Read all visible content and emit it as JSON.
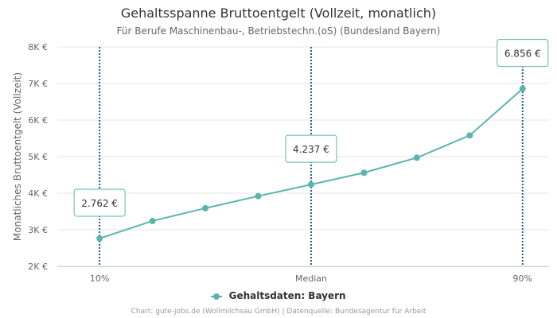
{
  "title": "Gehaltsspanne Bruttoentgelt (Vollzeit, monatlich)",
  "subtitle": "Für Berufe Maschinenbau-, Betriebstechn.(oS) (Bundesland Bayern)",
  "credits": "Chart: gute-jobs.de (Wollmilchsau GmbH) | Datenquelle: Bundesagentur für Arbeit",
  "colors": {
    "series": "#5bb5ae",
    "marker_line": "#1f5f8b",
    "grid": "#e6e6e6",
    "label_border": "#5bb5ae"
  },
  "chart_data": {
    "type": "line",
    "title": "Gehaltsspanne Bruttoentgelt (Vollzeit, monatlich)",
    "subtitle": "Für Berufe Maschinenbau-, Betriebstechn.(oS) (Bundesland Bayern)",
    "ylabel": "Monatliches Bruttoentgelt (Vollzeit)",
    "ylim": [
      2000,
      8000
    ],
    "yticks": [
      {
        "value": 2000,
        "label": "2K €"
      },
      {
        "value": 3000,
        "label": "3K €"
      },
      {
        "value": 4000,
        "label": "4K €"
      },
      {
        "value": 5000,
        "label": "5K €"
      },
      {
        "value": 6000,
        "label": "6K €"
      },
      {
        "value": 7000,
        "label": "7K €"
      },
      {
        "value": 8000,
        "label": "8K €"
      }
    ],
    "x": [
      10,
      20,
      30,
      40,
      50,
      60,
      70,
      80,
      90
    ],
    "xlim": [
      2,
      95
    ],
    "xticks": [
      {
        "value": 10,
        "label": "10%"
      },
      {
        "value": 50,
        "label": "Median"
      },
      {
        "value": 90,
        "label": "90%"
      }
    ],
    "series": [
      {
        "name": "Gehaltsdaten: Bayern",
        "values": [
          2762,
          3240,
          3590,
          3920,
          4237,
          4560,
          4970,
          5580,
          6856
        ]
      }
    ],
    "annotations": [
      {
        "x": 10,
        "value": 2762,
        "label": "2.762 €"
      },
      {
        "x": 50,
        "value": 4237,
        "label": "4.237 €"
      },
      {
        "x": 90,
        "value": 6856,
        "label": "6.856 €"
      }
    ],
    "legend": {
      "position": "bottom-center",
      "label": "Gehaltsdaten: Bayern"
    },
    "grid": true
  }
}
